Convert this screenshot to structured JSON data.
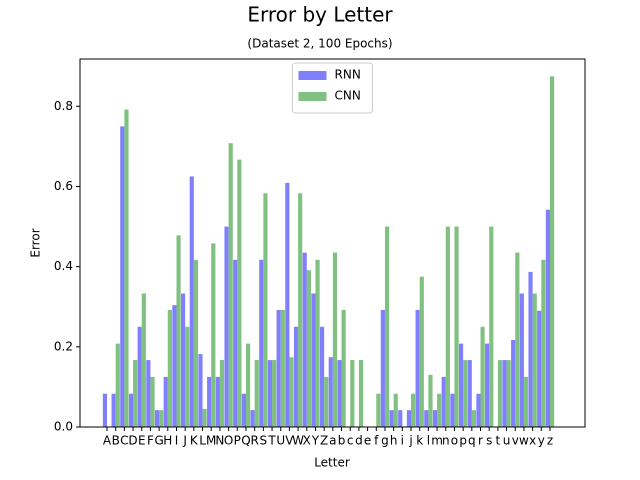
{
  "chart_data": {
    "type": "bar",
    "title": "Error by Letter",
    "subtitle": "(Dataset 2, 100 Epochs)",
    "x_label": "Letter",
    "y_label": "Error",
    "categories": [
      "A",
      "B",
      "C",
      "D",
      "E",
      "F",
      "G",
      "H",
      "I",
      "J",
      "K",
      "L",
      "M",
      "N",
      "O",
      "P",
      "Q",
      "R",
      "S",
      "T",
      "U",
      "V",
      "W",
      "X",
      "Y",
      "Z",
      "a",
      "b",
      "c",
      "d",
      "e",
      "f",
      "g",
      "h",
      "i",
      "j",
      "k",
      "l",
      "m",
      "n",
      "o",
      "p",
      "q",
      "r",
      "s",
      "t",
      "u",
      "v",
      "w",
      "x",
      "y",
      "z"
    ],
    "series": [
      {
        "name": "RNN",
        "color": "#8080ff",
        "values": [
          0.083,
          0.083,
          0.75,
          0.083,
          0.25,
          0.167,
          0.042,
          0.125,
          0.304,
          0.333,
          0.625,
          0.182,
          0.125,
          0.125,
          0.5,
          0.417,
          0.083,
          0.042,
          0.417,
          0.167,
          0.292,
          0.609,
          0.25,
          0.435,
          0.333,
          0.25,
          0.174,
          0.167,
          0,
          0,
          0,
          0,
          0.292,
          0.042,
          0.042,
          0.042,
          0.292,
          0.042,
          0.042,
          0.125,
          0.083,
          0.208,
          0.167,
          0.083,
          0.208,
          0,
          0.167,
          0.217,
          0.333,
          0.387,
          0.29,
          0.542
        ]
      },
      {
        "name": "CNN",
        "color": "#80c080",
        "values": [
          0,
          0.208,
          0.792,
          0.167,
          0.333,
          0.125,
          0.042,
          0.292,
          0.478,
          0.25,
          0.417,
          0.045,
          0.458,
          0.167,
          0.708,
          0.667,
          0.208,
          0.167,
          0.583,
          0.167,
          0.292,
          0.174,
          0.583,
          0.391,
          0.417,
          0.125,
          0.435,
          0.292,
          0.167,
          0.167,
          0,
          0.083,
          0.5,
          0.083,
          0,
          0.083,
          0.375,
          0.13,
          0.083,
          0.5,
          0.5,
          0.167,
          0.042,
          0.25,
          0.5,
          0.167,
          0.167,
          0.435,
          0.125,
          0.333,
          0.417,
          0.875
        ]
      }
    ],
    "ylim": [
      0,
      0.918
    ],
    "yticks": [
      {
        "value": 0,
        "label": "0.0"
      },
      0.2,
      0.4,
      0.6,
      0.8
    ],
    "legend": "upper center"
  }
}
